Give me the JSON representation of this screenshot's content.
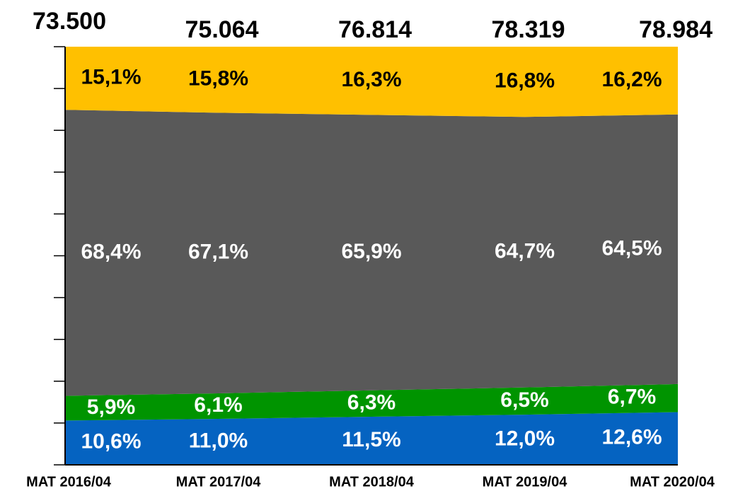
{
  "chart_data": {
    "type": "area",
    "stacked": true,
    "categories": [
      "MAT 2016/04",
      "MAT 2017/04",
      "MAT 2018/04",
      "MAT 2019/04",
      "MAT 2020/04"
    ],
    "totals": {
      "values": [
        73500,
        75064,
        76814,
        78319,
        78984
      ],
      "value_labels": [
        "73.500",
        "75.064",
        "76.814",
        "78.319",
        "78.984"
      ]
    },
    "series": [
      {
        "color": "#0563c1",
        "label_color": "#ffffff",
        "values": [
          10.6,
          11.0,
          11.5,
          12.0,
          12.6
        ],
        "value_labels": [
          "10,6%",
          "11,0%",
          "11,5%",
          "12,0%",
          "12,6%"
        ]
      },
      {
        "color": "#009400",
        "label_color": "#ffffff",
        "values": [
          5.9,
          6.1,
          6.3,
          6.5,
          6.7
        ],
        "value_labels": [
          "5,9%",
          "6,1%",
          "6,3%",
          "6,5%",
          "6,7%"
        ]
      },
      {
        "color": "#595959",
        "label_color": "#ffffff",
        "values": [
          68.4,
          67.1,
          65.9,
          64.7,
          64.5
        ],
        "value_labels": [
          "68,4%",
          "67,1%",
          "65,9%",
          "64,7%",
          "64,5%"
        ]
      },
      {
        "color": "#ffc000",
        "label_color": "#000000",
        "values": [
          15.1,
          15.8,
          16.3,
          16.8,
          16.2
        ],
        "value_labels": [
          "15,1%",
          "15,8%",
          "16,3%",
          "16,8%",
          "16,2%"
        ]
      }
    ],
    "ylim": [
      0,
      100
    ],
    "yticks": [
      0,
      10,
      20,
      30,
      40,
      50,
      60,
      70,
      80,
      90,
      100
    ]
  }
}
